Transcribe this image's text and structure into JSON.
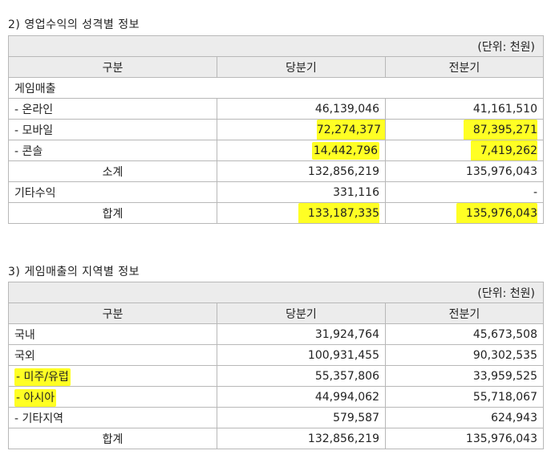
{
  "section2": {
    "title": "2) 영업수익의 성격별 정보",
    "unit": "(단위: 천원)",
    "headers": [
      "구분",
      "당분기",
      "전분기"
    ],
    "group_label": "게임매출",
    "rows": [
      {
        "label": "- 온라인",
        "current": "46,139,046",
        "previous": "41,161,510"
      },
      {
        "label": "- 모바일",
        "current": "72,274,377",
        "previous": "87,395,271"
      },
      {
        "label": "- 콘솔",
        "current": "14,442,796",
        "previous": "7,419,262"
      },
      {
        "label": "소계",
        "current": "132,856,219",
        "previous": "135,976,043"
      },
      {
        "label": "기타수익",
        "current": "331,116",
        "previous": "-"
      },
      {
        "label": "합계",
        "current": "133,187,335",
        "previous": "135,976,043"
      }
    ]
  },
  "section3": {
    "title": "3) 게임매출의 지역별 정보",
    "unit": "(단위: 천원)",
    "headers": [
      "구분",
      "당분기",
      "전분기"
    ],
    "rows": [
      {
        "label": "국내",
        "current": "31,924,764",
        "previous": "45,673,508"
      },
      {
        "label": "국외",
        "current": "100,931,455",
        "previous": "90,302,535"
      },
      {
        "label": "- 미주/유럽",
        "current": "55,357,806",
        "previous": "33,959,525"
      },
      {
        "label": "- 아시아",
        "current": "44,994,062",
        "previous": "55,718,067"
      },
      {
        "label": "- 기타지역",
        "current": "579,587",
        "previous": "624,943"
      },
      {
        "label": "합계",
        "current": "132,856,219",
        "previous": "135,976,043"
      }
    ]
  },
  "highlight_color": "#ffff24",
  "border_color": "#b8b8b8",
  "header_bg": "#ececec"
}
